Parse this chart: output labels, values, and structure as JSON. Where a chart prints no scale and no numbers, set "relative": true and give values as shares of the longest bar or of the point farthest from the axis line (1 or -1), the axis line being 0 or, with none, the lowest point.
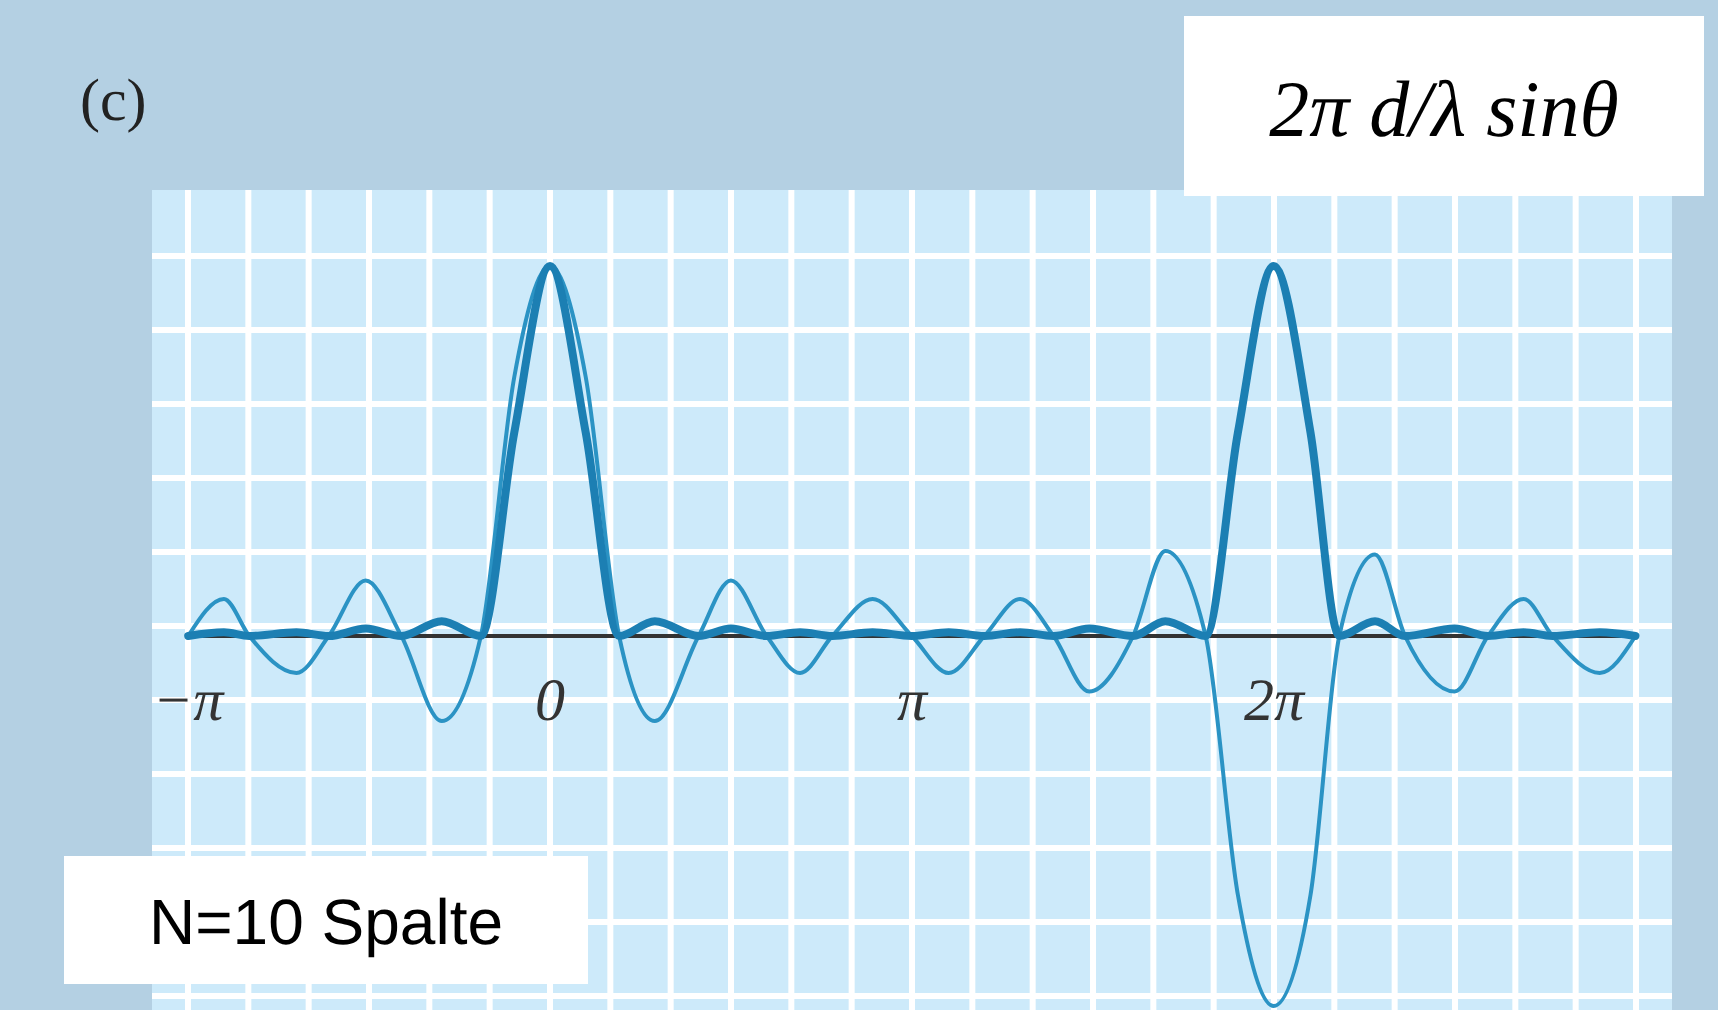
{
  "chart_data": {
    "type": "line",
    "title": "(c)",
    "xlabel": "2π d/λ sinθ",
    "annotations": [
      "N=10 Spalte"
    ],
    "relative": true,
    "grid": "x",
    "xlim": [
      -3.1416,
      9.4248
    ],
    "xticks": [
      {
        "value": -3.1416,
        "label": "−π"
      },
      {
        "value": -2.618,
        "label": null
      },
      {
        "value": -2.0944,
        "label": null
      },
      {
        "value": -1.5708,
        "label": null
      },
      {
        "value": -1.0472,
        "label": null
      },
      {
        "value": -0.5236,
        "label": null
      },
      {
        "value": 0,
        "label": "0"
      },
      {
        "value": 0.5236,
        "label": null
      },
      {
        "value": 1.0472,
        "label": null
      },
      {
        "value": 1.5708,
        "label": null
      },
      {
        "value": 2.0944,
        "label": null
      },
      {
        "value": 2.618,
        "label": null
      },
      {
        "value": 3.1416,
        "label": "π"
      },
      {
        "value": 3.6652,
        "label": null
      },
      {
        "value": 4.1888,
        "label": null
      },
      {
        "value": 4.7124,
        "label": null
      },
      {
        "value": 5.236,
        "label": null
      },
      {
        "value": 5.7596,
        "label": null
      },
      {
        "value": 6.2832,
        "label": "2π"
      },
      {
        "value": 6.8068,
        "label": null
      },
      {
        "value": 7.3304,
        "label": null
      },
      {
        "value": 7.854,
        "label": null
      },
      {
        "value": 8.3776,
        "label": null
      },
      {
        "value": 8.9012,
        "label": null
      },
      {
        "value": 9.4248,
        "label": null
      }
    ],
    "series": [
      {
        "color": "#2b93c4",
        "x": [
          -3.14,
          -2.83,
          -2.61,
          -2.2,
          -1.92,
          -1.6,
          -1.29,
          -0.94,
          -0.6,
          -0.31,
          0,
          0.31,
          0.6,
          0.91,
          1.29,
          1.57,
          1.88,
          2.17,
          2.45,
          2.8,
          3.14,
          3.46,
          3.77,
          4.08,
          4.37,
          4.68,
          5.06,
          5.34,
          5.69,
          5.97,
          6.28,
          6.6,
          6.85,
          7.16,
          7.42,
          7.85,
          8.14,
          8.45,
          8.7,
          9.11,
          9.42
        ],
        "values": [
          0,
          0.1,
          0,
          -0.1,
          0,
          0.15,
          0,
          -0.23,
          0,
          0.7,
          1,
          0.7,
          0,
          -0.23,
          0,
          0.15,
          0,
          -0.1,
          0,
          0.1,
          0,
          -0.1,
          0,
          0.1,
          0,
          -0.15,
          0,
          0.23,
          0,
          -0.7,
          -1,
          -0.7,
          0,
          0.22,
          0,
          -0.15,
          0,
          0.1,
          0,
          -0.1,
          0
        ]
      },
      {
        "color": "#1c7fb3",
        "x": [
          -3.14,
          -2.83,
          -2.61,
          -2.2,
          -1.92,
          -1.6,
          -1.29,
          -0.94,
          -0.6,
          -0.31,
          0,
          0.31,
          0.6,
          0.91,
          1.29,
          1.57,
          1.88,
          2.17,
          2.45,
          2.8,
          3.14,
          3.46,
          3.77,
          4.08,
          4.37,
          4.68,
          5.06,
          5.34,
          5.69,
          5.97,
          6.28,
          6.6,
          6.85,
          7.16,
          7.42,
          7.85,
          8.14,
          8.45,
          8.7,
          9.11,
          9.42
        ],
        "values": [
          0,
          0.01,
          0,
          0.01,
          0,
          0.02,
          0,
          0.04,
          0,
          0.55,
          1,
          0.55,
          0,
          0.04,
          0,
          0.02,
          0,
          0.01,
          0,
          0.01,
          0,
          0.01,
          0,
          0.01,
          0,
          0.02,
          0,
          0.04,
          0,
          0.55,
          1,
          0.55,
          0,
          0.04,
          0,
          0.02,
          0,
          0.01,
          0,
          0.01,
          0
        ]
      }
    ]
  }
}
